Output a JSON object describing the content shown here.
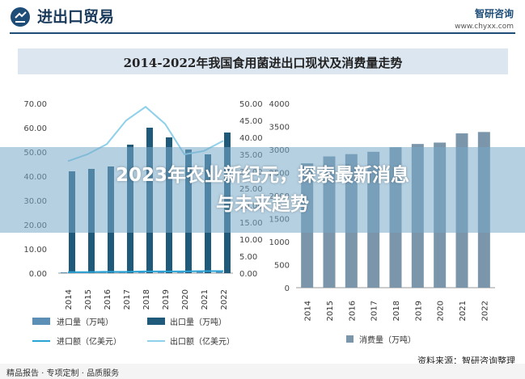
{
  "header": {
    "title": "进出口贸易",
    "logo": "智研咨询",
    "url": "www.chyxx.com"
  },
  "chart_title": "2014-2022年我国食用菌进出口现状及消费量走势",
  "overlay": {
    "line1": "2023年农业新纪元，探索最新消息",
    "line2": "与未来趋势"
  },
  "footer": {
    "left": "精品报告 · 专项定制 · 品质服务",
    "source": "资料来源：智研咨询整理"
  },
  "colors": {
    "import_bar": "#5b8fb5",
    "export_bar": "#1f5a7a",
    "import_line": "#2aa3d6",
    "export_line": "#8fd0ea",
    "consumption_bar": "#7b96ab"
  },
  "chart_data": [
    {
      "type": "bar",
      "categories": [
        "2014",
        "2015",
        "2016",
        "2017",
        "2018",
        "2019",
        "2020",
        "2021",
        "2022"
      ],
      "series": [
        {
          "name": "进口量（万吨）",
          "values": [
            0.3,
            0.3,
            0.3,
            0.4,
            0.4,
            0.5,
            0.4,
            0.5,
            0.6
          ],
          "axis": "left"
        },
        {
          "name": "出口量（万吨）",
          "values": [
            42,
            43,
            44,
            53,
            60,
            56,
            51,
            49,
            58
          ],
          "axis": "left"
        },
        {
          "name": "进口额（亿美元）",
          "type": "line",
          "values": [
            0.3,
            0.3,
            0.4,
            0.4,
            0.5,
            0.5,
            0.5,
            0.6,
            0.6
          ],
          "axis": "right"
        },
        {
          "name": "出口额（亿美元）",
          "type": "line",
          "values": [
            33,
            35,
            38,
            45,
            49,
            44,
            35,
            36,
            39
          ],
          "axis": "right"
        }
      ],
      "left_axis": {
        "ticks": [
          "0.00",
          "10.00",
          "20.00",
          "30.00",
          "40.00",
          "50.00",
          "60.00",
          "70.00"
        ],
        "range": [
          0,
          70
        ]
      },
      "right_axis": {
        "ticks": [
          "0.00",
          "5.00",
          "10.00",
          "15.00",
          "20.00",
          "25.00",
          "30.00",
          "35.00",
          "40.00",
          "45.00",
          "50.00"
        ],
        "range": [
          0,
          50
        ]
      }
    },
    {
      "type": "bar",
      "categories": [
        "2014",
        "2015",
        "2016",
        "2017",
        "2018",
        "2019",
        "2020",
        "2021",
        "2022"
      ],
      "series": [
        {
          "name": "消费量（万吨）",
          "values": [
            2700,
            2850,
            2900,
            2950,
            3050,
            3120,
            3150,
            3350,
            3380
          ]
        }
      ],
      "axis": {
        "ticks": [
          "0",
          "500",
          "1000",
          "1500",
          "2000",
          "2500",
          "3000",
          "3500",
          "4000"
        ],
        "range": [
          0,
          4000
        ]
      }
    }
  ]
}
